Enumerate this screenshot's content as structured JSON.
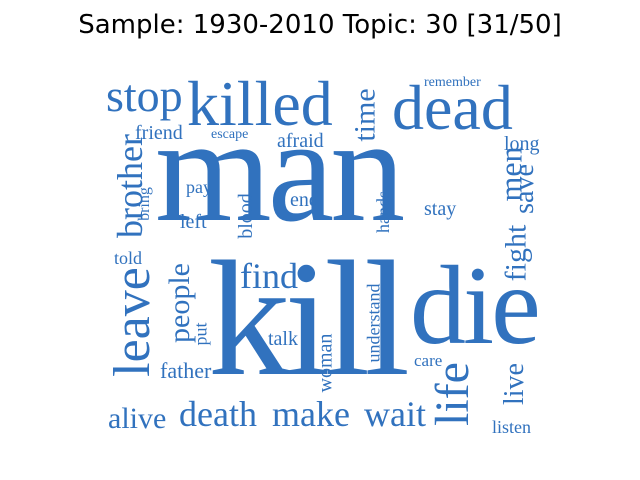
{
  "title": "Sample: 1930-2010 Topic: 30 [31/50]",
  "word_color": "#3172be",
  "words": {
    "man": "man",
    "kill": "kill",
    "die": "die",
    "killed": "killed",
    "dead": "dead",
    "stop": "stop",
    "leave": "leave",
    "life": "life",
    "death": "death",
    "make": "make",
    "wait": "wait",
    "find": "find",
    "people": "people",
    "brother": "brother",
    "men": "men",
    "fight": "fight",
    "time": "time",
    "alive": "alive",
    "save": "save",
    "live": "live",
    "father": "father",
    "remember": "remember",
    "friend": "friend",
    "escape": "escape",
    "afraid": "afraid",
    "long": "long",
    "pay": "pay",
    "bring": "bring",
    "left": "left",
    "end": "end",
    "blood": "blood",
    "hands": "hands",
    "stay": "stay",
    "told": "told",
    "put": "put",
    "talk": "talk",
    "woman": "woman",
    "understand": "understand",
    "care": "care",
    "listen": "listen"
  }
}
